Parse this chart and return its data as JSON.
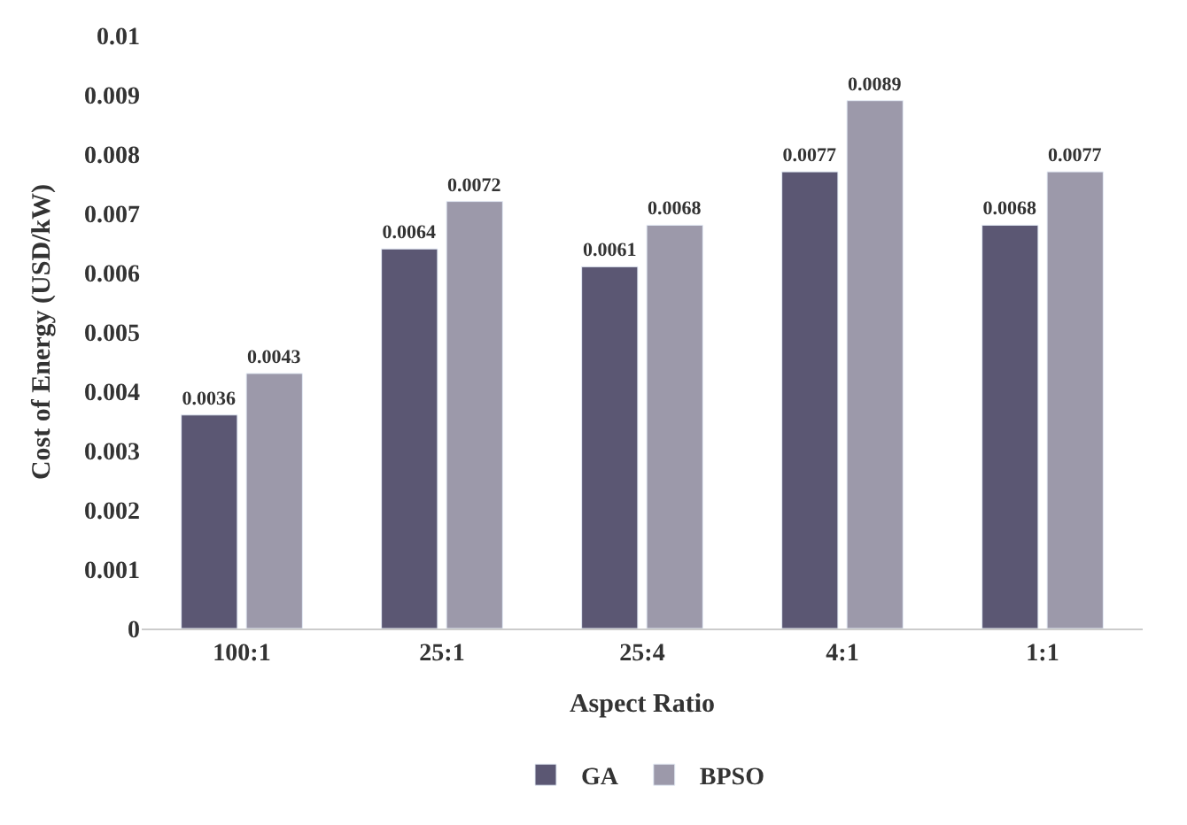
{
  "chart_data": {
    "type": "bar",
    "xlabel": "Aspect Ratio",
    "ylabel": "Cost of Energy (USD/kW)",
    "categories": [
      "100:1",
      "25:1",
      "25:4",
      "4:1",
      "1:1"
    ],
    "series": [
      {
        "name": "GA",
        "color": "#5b5773",
        "values": [
          0.0036,
          0.0064,
          0.0061,
          0.0077,
          0.0068
        ]
      },
      {
        "name": "BPSO",
        "color": "#9c99aa",
        "values": [
          0.0043,
          0.0072,
          0.0068,
          0.0089,
          0.0077
        ]
      }
    ],
    "ylim": [
      0,
      0.01
    ],
    "yticks": [
      0,
      0.001,
      0.002,
      0.003,
      0.004,
      0.005,
      0.006,
      0.007,
      0.008,
      0.009,
      0.01
    ],
    "data_labels": true,
    "legend": "bottom"
  }
}
